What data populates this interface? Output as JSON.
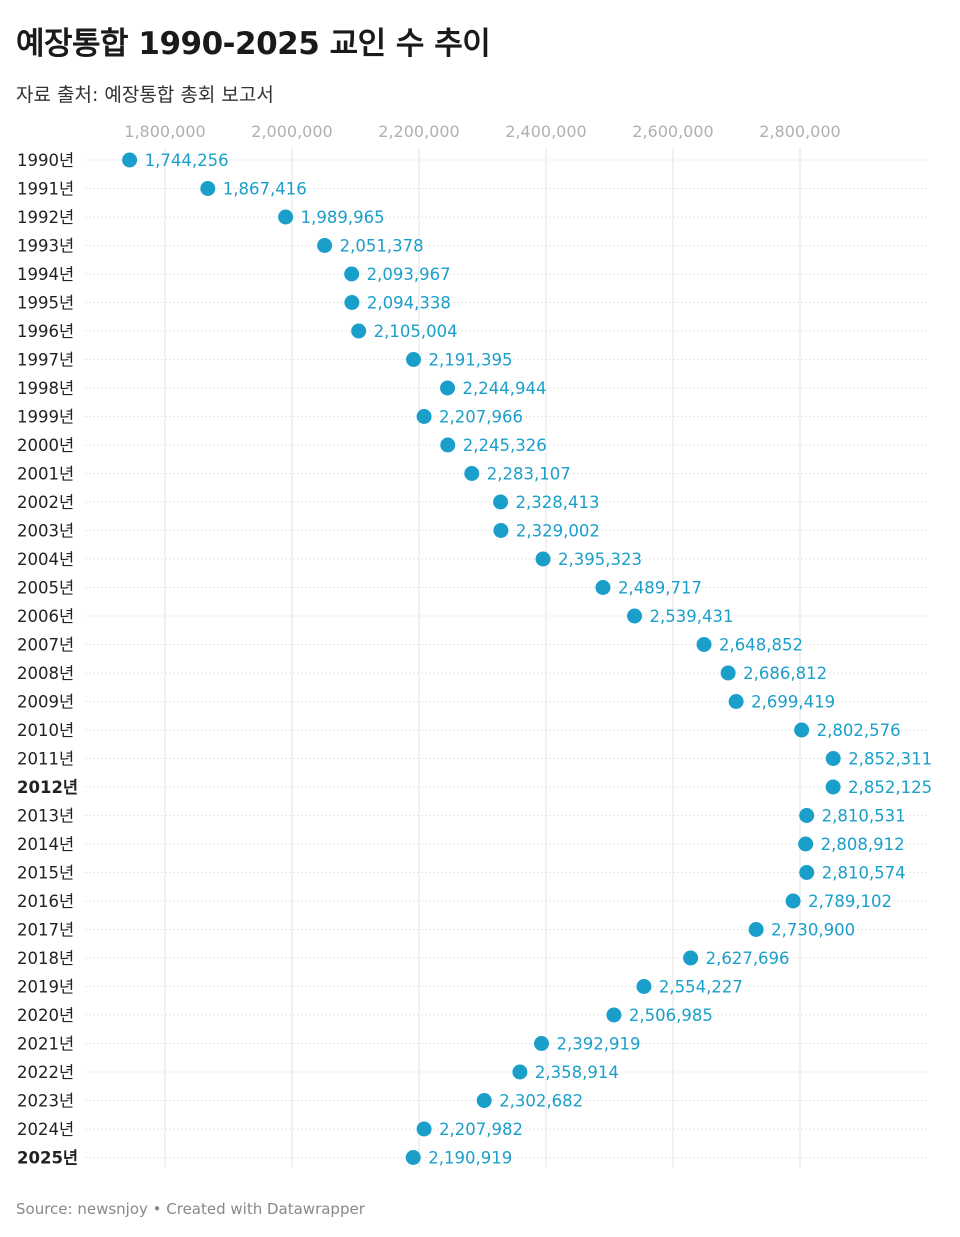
{
  "header": {
    "title": "예장통합 1990-2025 교인 수 추이",
    "subtitle": "자료 출처: 예장통합 총회 보고서"
  },
  "footer": {
    "source": "Source: newsnjoy • Created with Datawrapper"
  },
  "colors": {
    "dot": "#1a9fcb",
    "value_label": "#1a9fcb",
    "gridline": "#e3e3e3",
    "row_line": "#e6e6e6",
    "tick_label": "#b0b0b0"
  },
  "chart_data": {
    "type": "scatter",
    "orientation": "horizontal dot plot",
    "x_ticks": [
      1800000,
      2000000,
      2200000,
      2400000,
      2600000,
      2800000
    ],
    "x_tick_labels": [
      "1,800,000",
      "2,000,000",
      "2,200,000",
      "2,400,000",
      "2,600,000",
      "2,800,000"
    ],
    "grid": true,
    "categories": [
      "1990년",
      "1991년",
      "1992년",
      "1993년",
      "1994년",
      "1995년",
      "1996년",
      "1997년",
      "1998년",
      "1999년",
      "2000년",
      "2001년",
      "2002년",
      "2003년",
      "2004년",
      "2005년",
      "2006년",
      "2007년",
      "2008년",
      "2009년",
      "2010년",
      "2011년",
      "2012년",
      "2013년",
      "2014년",
      "2015년",
      "2016년",
      "2017년",
      "2018년",
      "2019년",
      "2020년",
      "2021년",
      "2022년",
      "2023년",
      "2024년",
      "2025년"
    ],
    "bold_categories": [
      "2012년",
      "2025년"
    ],
    "values": [
      1744256,
      1867416,
      1989965,
      2051378,
      2093967,
      2094338,
      2105004,
      2191395,
      2244944,
      2207966,
      2245326,
      2283107,
      2328413,
      2329002,
      2395323,
      2489717,
      2539431,
      2648852,
      2686812,
      2699419,
      2802576,
      2852311,
      2852125,
      2810531,
      2808912,
      2810574,
      2789102,
      2730900,
      2627696,
      2554227,
      2506985,
      2392919,
      2358914,
      2302682,
      2207982,
      2190919
    ],
    "value_labels": [
      "1,744,256",
      "1,867,416",
      "1,989,965",
      "2,051,378",
      "2,093,967",
      "2,094,338",
      "2,105,004",
      "2,191,395",
      "2,244,944",
      "2,207,966",
      "2,245,326",
      "2,283,107",
      "2,328,413",
      "2,329,002",
      "2,395,323",
      "2,489,717",
      "2,539,431",
      "2,648,852",
      "2,686,812",
      "2,699,419",
      "2,802,576",
      "2,852,311",
      "2,852,125",
      "2,810,531",
      "2,808,912",
      "2,810,574",
      "2,789,102",
      "2,730,900",
      "2,627,696",
      "2,554,227",
      "2,506,985",
      "2,392,919",
      "2,358,914",
      "2,302,682",
      "2,207,982",
      "2,190,919"
    ]
  }
}
